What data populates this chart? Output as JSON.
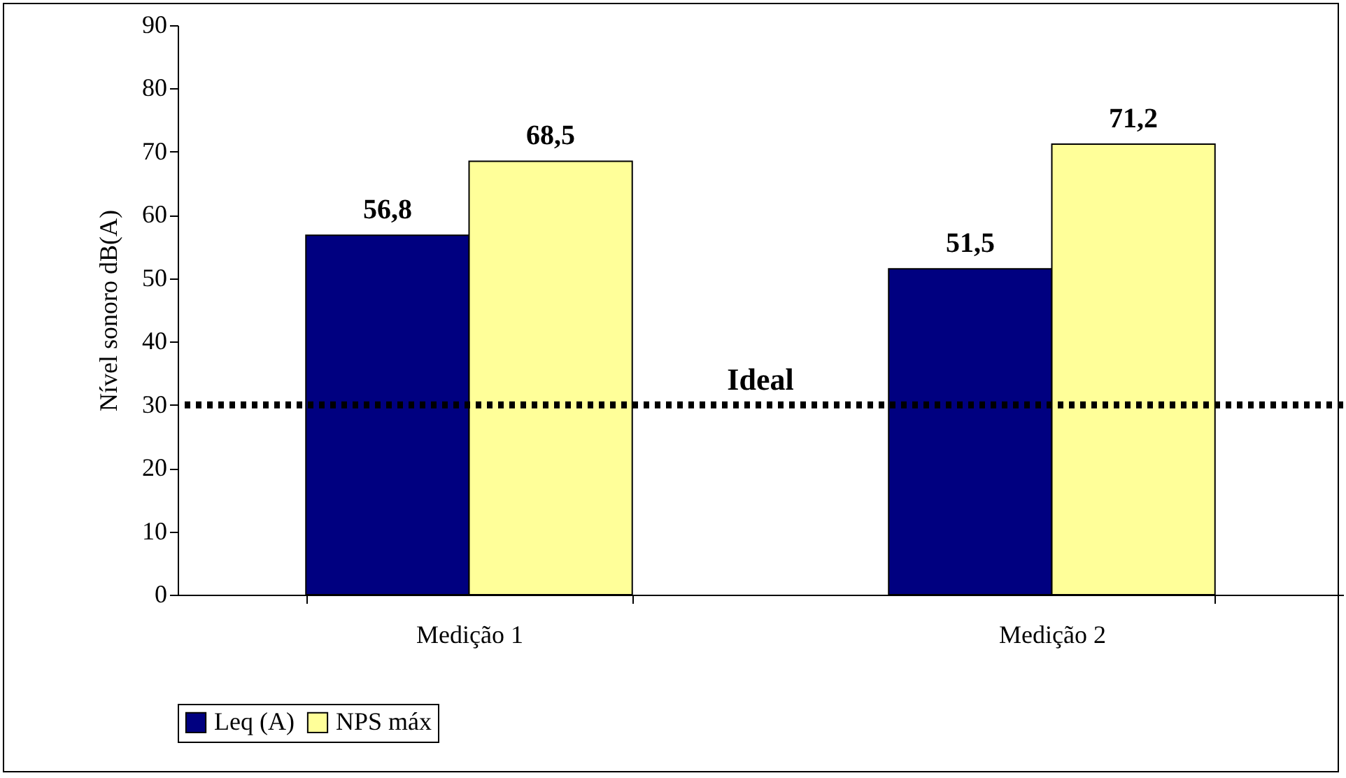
{
  "chart_data": {
    "type": "bar",
    "ylabel": "Nível sonoro  dB(A)",
    "categories": [
      "Medição 1",
      "Medição 2"
    ],
    "series": [
      {
        "name": "Leq (A)",
        "color": "#000080",
        "values": [
          56.8,
          51.5
        ],
        "value_labels": [
          "56,8",
          "51,5"
        ]
      },
      {
        "name": "NPS máx",
        "color": "#ffff99",
        "values": [
          68.5,
          71.2
        ],
        "value_labels": [
          "68,5",
          "71,2"
        ]
      }
    ],
    "ylim": [
      0,
      90
    ],
    "yticks": [
      0,
      10,
      20,
      30,
      40,
      50,
      60,
      70,
      80,
      90
    ],
    "grid": false,
    "legend": "bottom",
    "ref_lines": [
      {
        "axis": "y",
        "value": 30,
        "label": "Ideal",
        "color": "#000000",
        "line_style": "dotted"
      }
    ]
  }
}
